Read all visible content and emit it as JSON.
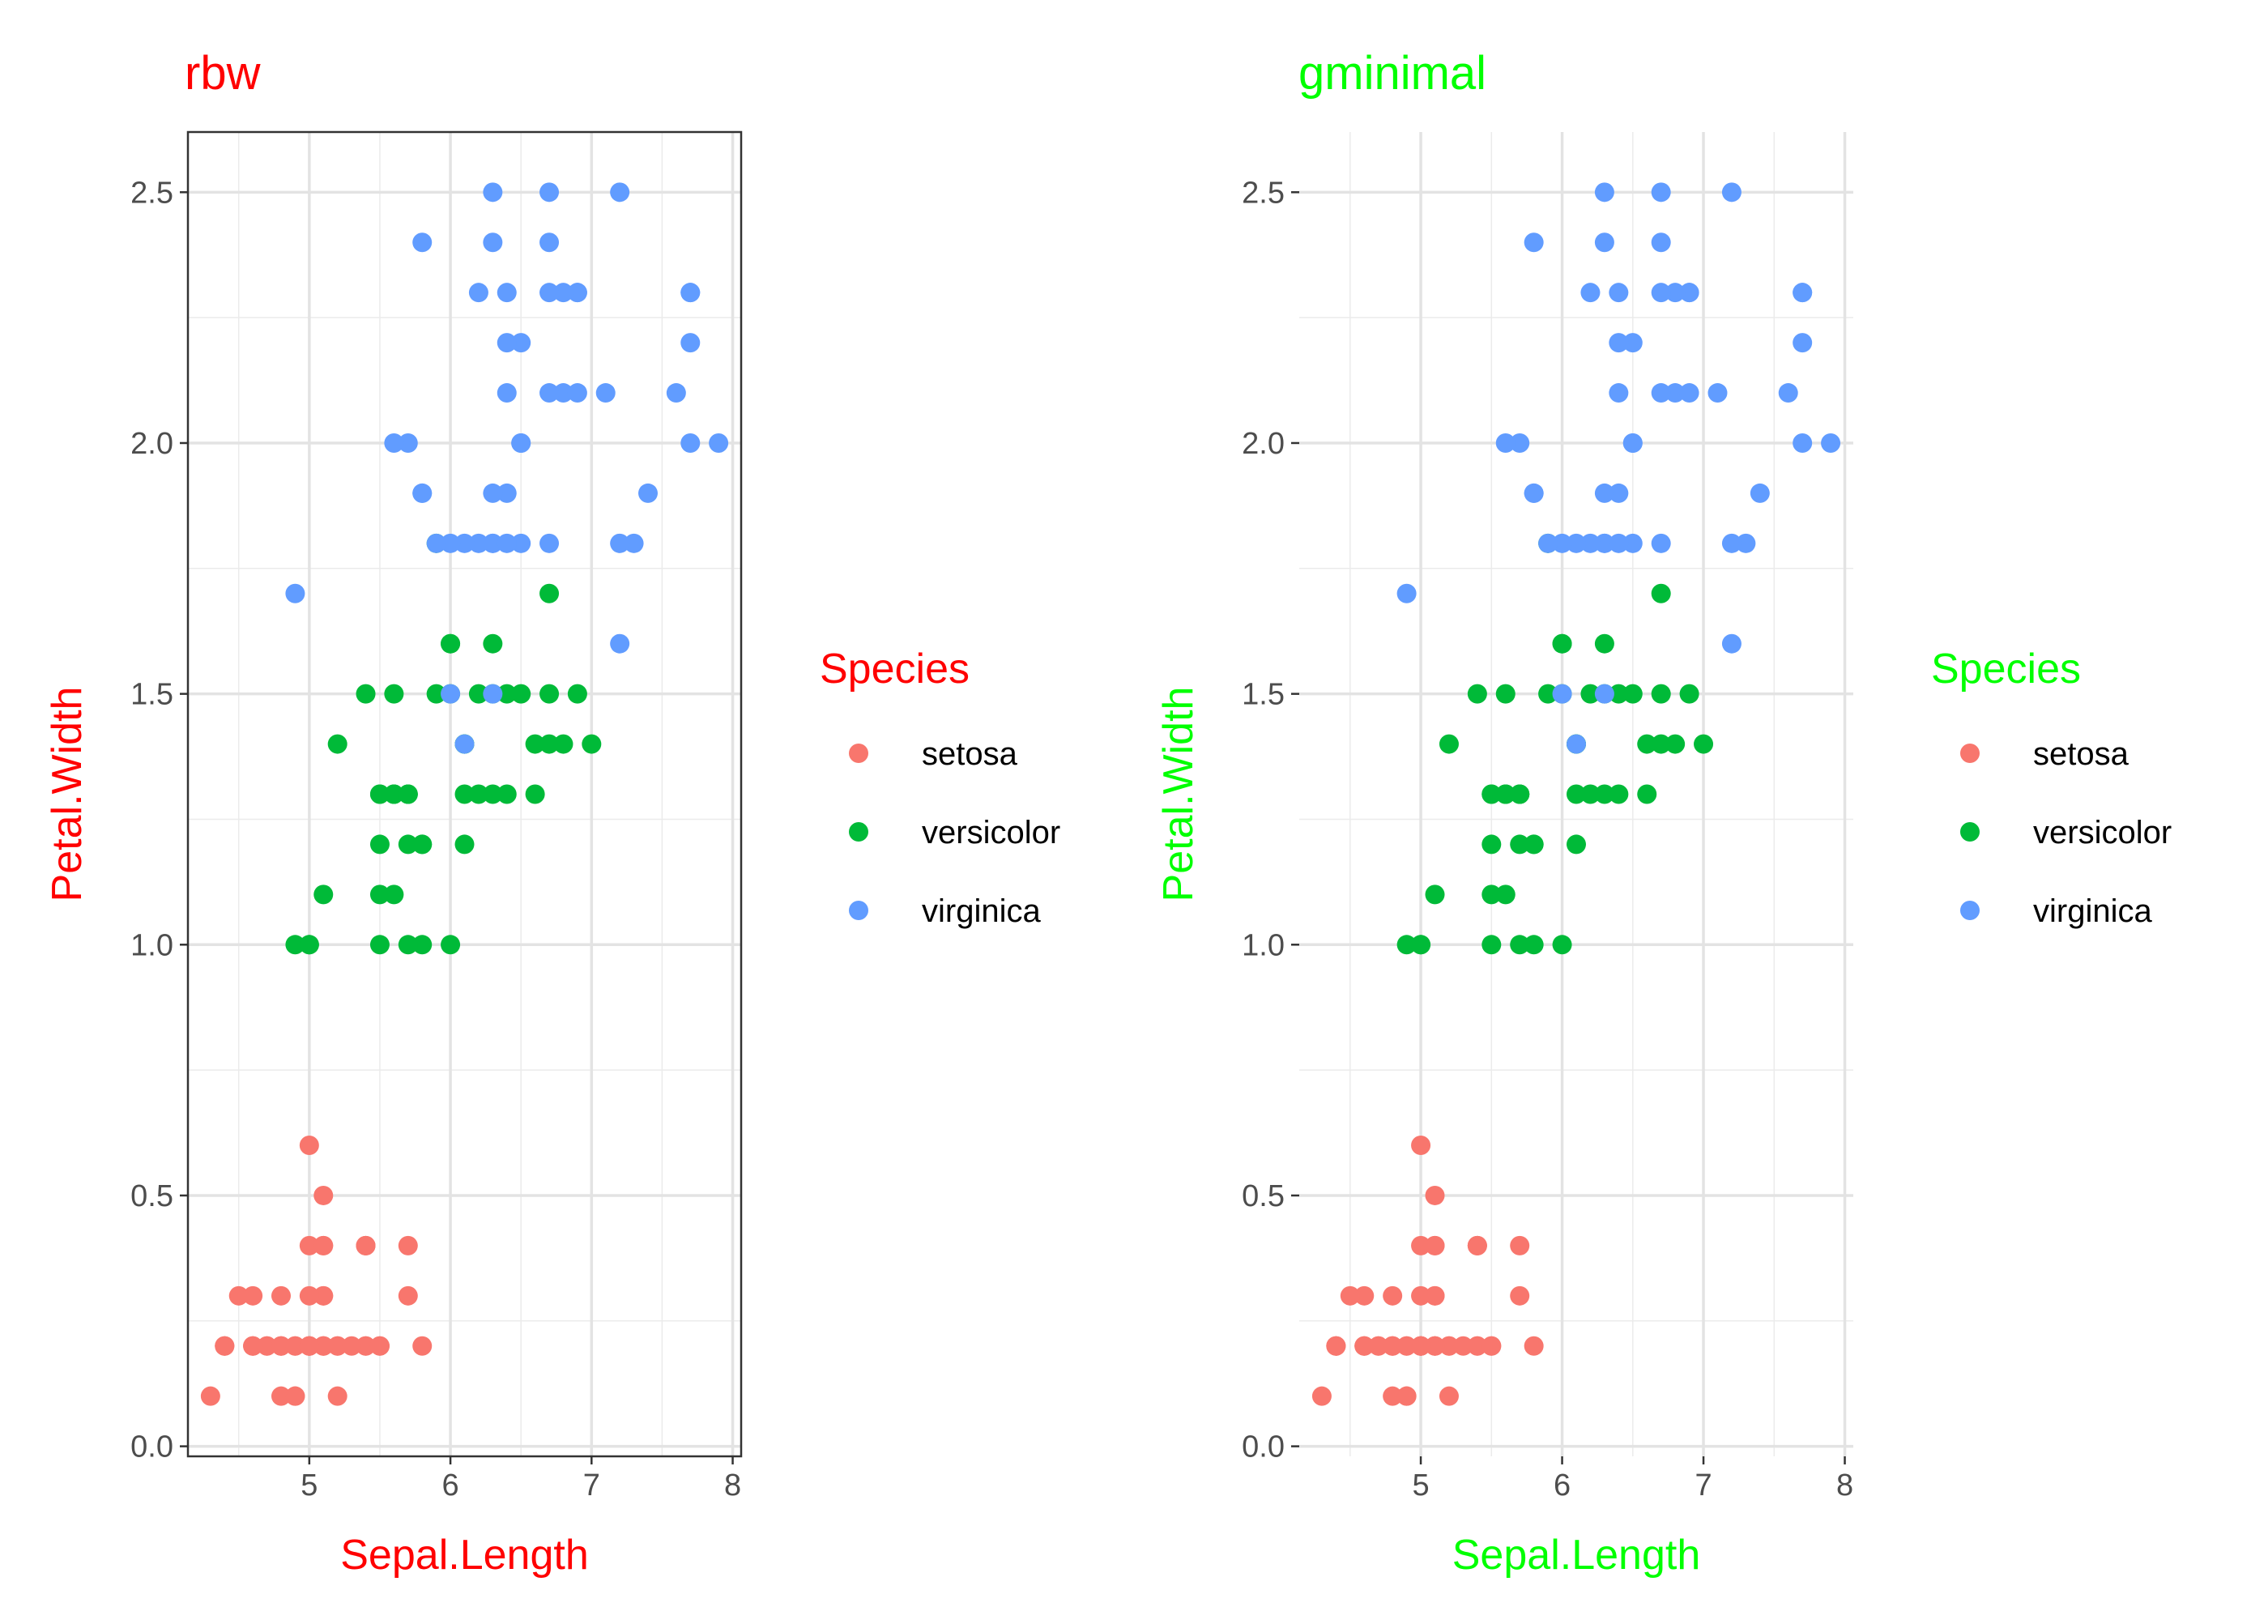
{
  "chart_data": [
    {
      "type": "scatter",
      "title": "rbw",
      "title_color": "#FF0000",
      "xlabel": "Sepal.Length",
      "ylabel": "Petal.Width",
      "xlim": [
        4.14,
        8.06
      ],
      "ylim": [
        -0.02,
        2.62
      ],
      "xticks": [
        5,
        6,
        7,
        8
      ],
      "yticks": [
        0.0,
        0.5,
        1.0,
        1.5,
        2.0,
        2.5
      ],
      "ytick_labels": [
        "0.0",
        "0.5",
        "1.0",
        "1.5",
        "2.0",
        "2.5"
      ],
      "grid": true,
      "panel_border": true,
      "legend": {
        "title": "Species",
        "placement": "right",
        "entries": [
          "setosa",
          "versicolor",
          "virginica"
        ]
      }
    },
    {
      "type": "scatter",
      "title": "gminimal",
      "title_color": "#00FF00",
      "xlabel": "Sepal.Length",
      "ylabel": "Petal.Width",
      "xlim": [
        4.14,
        8.06
      ],
      "ylim": [
        -0.02,
        2.62
      ],
      "xticks": [
        5,
        6,
        7,
        8
      ],
      "yticks": [
        0.0,
        0.5,
        1.0,
        1.5,
        2.0,
        2.5
      ],
      "ytick_labels": [
        "0.0",
        "0.5",
        "1.0",
        "1.5",
        "2.0",
        "2.5"
      ],
      "grid": true,
      "panel_border": false,
      "legend": {
        "title": "Species",
        "placement": "right",
        "entries": [
          "setosa",
          "versicolor",
          "virginica"
        ]
      }
    }
  ],
  "series_colors": [
    "#F8766D",
    "#00BA38",
    "#619CFF"
  ],
  "series": [
    {
      "name": "setosa",
      "points": [
        [
          5.1,
          0.2
        ],
        [
          4.9,
          0.2
        ],
        [
          4.7,
          0.2
        ],
        [
          4.6,
          0.2
        ],
        [
          5.0,
          0.2
        ],
        [
          5.4,
          0.4
        ],
        [
          4.6,
          0.3
        ],
        [
          5.0,
          0.2
        ],
        [
          4.4,
          0.2
        ],
        [
          4.9,
          0.1
        ],
        [
          5.4,
          0.2
        ],
        [
          4.8,
          0.2
        ],
        [
          4.8,
          0.1
        ],
        [
          4.3,
          0.1
        ],
        [
          5.8,
          0.2
        ],
        [
          5.7,
          0.4
        ],
        [
          5.4,
          0.4
        ],
        [
          5.1,
          0.3
        ],
        [
          5.7,
          0.3
        ],
        [
          5.1,
          0.3
        ],
        [
          5.4,
          0.2
        ],
        [
          5.1,
          0.4
        ],
        [
          4.6,
          0.2
        ],
        [
          5.1,
          0.5
        ],
        [
          4.8,
          0.2
        ],
        [
          5.0,
          0.2
        ],
        [
          5.0,
          0.4
        ],
        [
          5.2,
          0.2
        ],
        [
          5.2,
          0.2
        ],
        [
          4.7,
          0.2
        ],
        [
          4.8,
          0.2
        ],
        [
          5.4,
          0.4
        ],
        [
          5.2,
          0.1
        ],
        [
          5.5,
          0.2
        ],
        [
          4.9,
          0.2
        ],
        [
          5.0,
          0.2
        ],
        [
          5.5,
          0.2
        ],
        [
          4.9,
          0.1
        ],
        [
          4.4,
          0.2
        ],
        [
          5.1,
          0.2
        ],
        [
          5.0,
          0.3
        ],
        [
          4.5,
          0.3
        ],
        [
          4.4,
          0.2
        ],
        [
          5.0,
          0.6
        ],
        [
          5.1,
          0.4
        ],
        [
          4.8,
          0.3
        ],
        [
          5.1,
          0.2
        ],
        [
          4.6,
          0.2
        ],
        [
          5.3,
          0.2
        ],
        [
          5.0,
          0.2
        ]
      ]
    },
    {
      "name": "versicolor",
      "points": [
        [
          7.0,
          1.4
        ],
        [
          6.4,
          1.5
        ],
        [
          6.9,
          1.5
        ],
        [
          5.5,
          1.3
        ],
        [
          6.5,
          1.5
        ],
        [
          5.7,
          1.3
        ],
        [
          6.3,
          1.6
        ],
        [
          4.9,
          1.0
        ],
        [
          6.6,
          1.3
        ],
        [
          5.2,
          1.4
        ],
        [
          5.0,
          1.0
        ],
        [
          5.9,
          1.5
        ],
        [
          6.0,
          1.0
        ],
        [
          6.1,
          1.4
        ],
        [
          5.6,
          1.3
        ],
        [
          6.7,
          1.4
        ],
        [
          5.6,
          1.5
        ],
        [
          5.8,
          1.0
        ],
        [
          6.2,
          1.5
        ],
        [
          5.6,
          1.1
        ],
        [
          5.9,
          1.8
        ],
        [
          6.1,
          1.3
        ],
        [
          6.3,
          1.5
        ],
        [
          6.1,
          1.2
        ],
        [
          6.4,
          1.3
        ],
        [
          6.6,
          1.4
        ],
        [
          6.8,
          1.4
        ],
        [
          6.7,
          1.7
        ],
        [
          6.0,
          1.5
        ],
        [
          5.7,
          1.0
        ],
        [
          5.5,
          1.1
        ],
        [
          5.5,
          1.0
        ],
        [
          5.8,
          1.2
        ],
        [
          6.0,
          1.6
        ],
        [
          5.4,
          1.5
        ],
        [
          6.0,
          1.6
        ],
        [
          6.7,
          1.5
        ],
        [
          6.3,
          1.3
        ],
        [
          5.6,
          1.3
        ],
        [
          5.5,
          1.3
        ],
        [
          5.5,
          1.2
        ],
        [
          6.1,
          1.4
        ],
        [
          5.8,
          1.2
        ],
        [
          5.0,
          1.0
        ],
        [
          5.6,
          1.3
        ],
        [
          5.7,
          1.2
        ],
        [
          5.7,
          1.3
        ],
        [
          6.2,
          1.3
        ],
        [
          5.1,
          1.1
        ],
        [
          5.7,
          1.3
        ]
      ]
    },
    {
      "name": "virginica",
      "points": [
        [
          6.3,
          2.5
        ],
        [
          5.8,
          1.9
        ],
        [
          7.1,
          2.1
        ],
        [
          6.3,
          1.8
        ],
        [
          6.5,
          2.2
        ],
        [
          7.6,
          2.1
        ],
        [
          4.9,
          1.7
        ],
        [
          7.3,
          1.8
        ],
        [
          6.7,
          1.8
        ],
        [
          7.2,
          2.5
        ],
        [
          6.5,
          2.0
        ],
        [
          6.4,
          1.9
        ],
        [
          6.8,
          2.1
        ],
        [
          5.7,
          2.0
        ],
        [
          5.8,
          2.4
        ],
        [
          6.4,
          2.3
        ],
        [
          6.5,
          1.8
        ],
        [
          7.7,
          2.2
        ],
        [
          7.7,
          2.3
        ],
        [
          6.0,
          1.5
        ],
        [
          6.9,
          2.3
        ],
        [
          5.6,
          2.0
        ],
        [
          7.7,
          2.0
        ],
        [
          6.3,
          1.8
        ],
        [
          6.7,
          2.1
        ],
        [
          7.2,
          1.8
        ],
        [
          6.2,
          1.8
        ],
        [
          6.1,
          1.8
        ],
        [
          6.4,
          2.1
        ],
        [
          7.2,
          1.6
        ],
        [
          7.4,
          1.9
        ],
        [
          7.9,
          2.0
        ],
        [
          6.4,
          2.2
        ],
        [
          6.3,
          1.5
        ],
        [
          6.1,
          1.4
        ],
        [
          7.7,
          2.3
        ],
        [
          6.3,
          2.4
        ],
        [
          6.4,
          1.8
        ],
        [
          6.0,
          1.8
        ],
        [
          6.9,
          2.1
        ],
        [
          6.7,
          2.4
        ],
        [
          6.9,
          2.3
        ],
        [
          5.8,
          1.9
        ],
        [
          6.8,
          2.3
        ],
        [
          6.7,
          2.5
        ],
        [
          6.7,
          2.3
        ],
        [
          6.3,
          1.9
        ],
        [
          6.5,
          2.0
        ],
        [
          6.2,
          2.3
        ],
        [
          5.9,
          1.8
        ]
      ]
    }
  ]
}
